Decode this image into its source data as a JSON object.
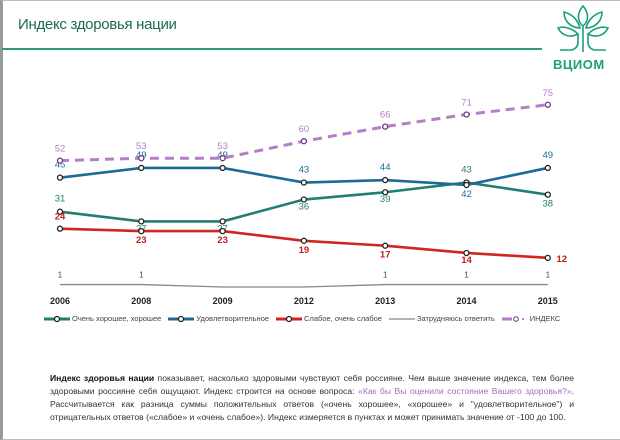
{
  "header": {
    "title": "Индекс здоровья нации",
    "logo_text": "ВЦИОМ"
  },
  "chart_data": {
    "type": "line",
    "categories": [
      "2006",
      "2008",
      "2009",
      "2012",
      "2013",
      "2014",
      "2015"
    ],
    "legend_placement": "bottom",
    "grid": false,
    "series": [
      {
        "name": "Очень хорошее, хорошее",
        "color": "#1f7f70",
        "style": "solid",
        "values": [
          31,
          27,
          27,
          36,
          39,
          43,
          38
        ],
        "labels": [
          "31",
          "27",
          "27",
          "36",
          "39",
          "43",
          "38"
        ]
      },
      {
        "name": "Удовлетворительное",
        "color": "#1d6a96",
        "style": "solid",
        "values": [
          45,
          49,
          49,
          43,
          44,
          42,
          49
        ],
        "labels": [
          "45",
          "49",
          "49",
          "43",
          "44",
          "42",
          "49"
        ]
      },
      {
        "name": "Слабое, очень слабое",
        "color": "#d0261f",
        "style": "solid",
        "values": [
          24,
          23,
          23,
          19,
          17,
          14,
          12
        ],
        "labels": [
          "24",
          "23",
          "23",
          "19",
          "17",
          "14",
          "12"
        ]
      },
      {
        "name": "Затрудняюсь ответить",
        "color": "#888888",
        "style": "thin",
        "values": [
          1,
          1,
          0,
          0,
          1,
          1,
          1
        ],
        "labels": [
          "1",
          "1",
          "",
          "",
          "1",
          "1",
          "1"
        ]
      },
      {
        "name": "ИНДЕКС",
        "color": "#b47fc8",
        "style": "dashed",
        "values": [
          52,
          53,
          53,
          60,
          66,
          71,
          75
        ],
        "labels": [
          "52",
          "53",
          "53",
          "60",
          "66",
          "71",
          "75"
        ]
      }
    ]
  },
  "description": {
    "bold": "Индекс здоровья нации",
    "part1": " показывает, насколько здоровыми чувствуют себя россияне. Чем выше значение индекса, тем более здоровыми россияне себя ощущают. Индекс строится на основе вопроса: ",
    "question": "«Как бы Вы оценили состояние Вашего здоровья?»",
    "part2": ". Рассчитывается как разница суммы положительных ответов («очень хорошее», «хорошее» и \"удовлетворительное\") и отрицательных ответов («слабое» и «очень слабое»). Индекс измеряется в пунктах и может принимать значение от -100 до 100."
  }
}
